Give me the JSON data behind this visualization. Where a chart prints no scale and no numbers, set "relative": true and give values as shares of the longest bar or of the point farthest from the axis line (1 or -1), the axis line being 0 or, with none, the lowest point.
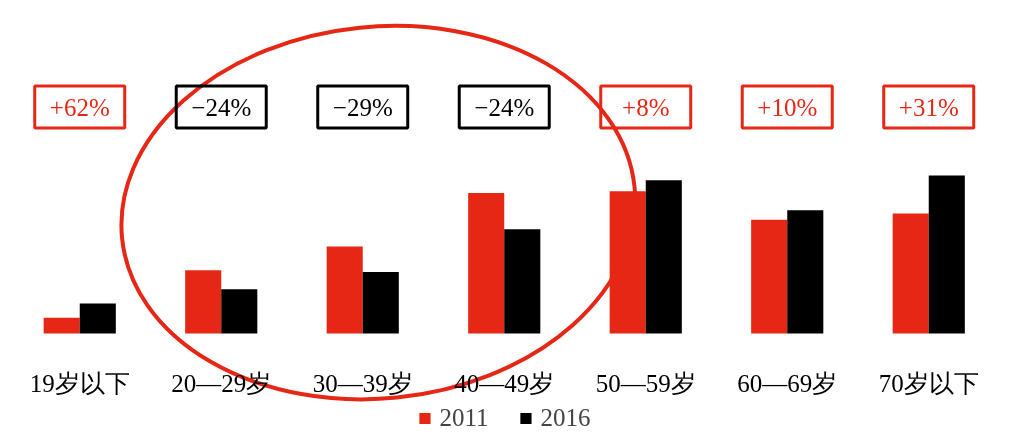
{
  "chart_data": {
    "type": "bar",
    "relative": true,
    "categories": [
      "19岁以下",
      "20—29岁",
      "30—39岁",
      "40—49岁",
      "50—59岁",
      "60—69岁",
      "70岁以下"
    ],
    "series": [
      {
        "name": "2011",
        "color": "#e62715",
        "values": [
          0.1,
          0.4,
          0.55,
          0.89,
          0.9,
          0.72,
          0.76
        ]
      },
      {
        "name": "2016",
        "color": "#000000",
        "values": [
          0.19,
          0.28,
          0.39,
          0.66,
          0.97,
          0.78,
          1.0
        ]
      }
    ],
    "annotations": [
      "+62%",
      "−24%",
      "−29%",
      "−24%",
      "+8%",
      "+10%",
      "+31%"
    ],
    "legend": "bottom"
  }
}
